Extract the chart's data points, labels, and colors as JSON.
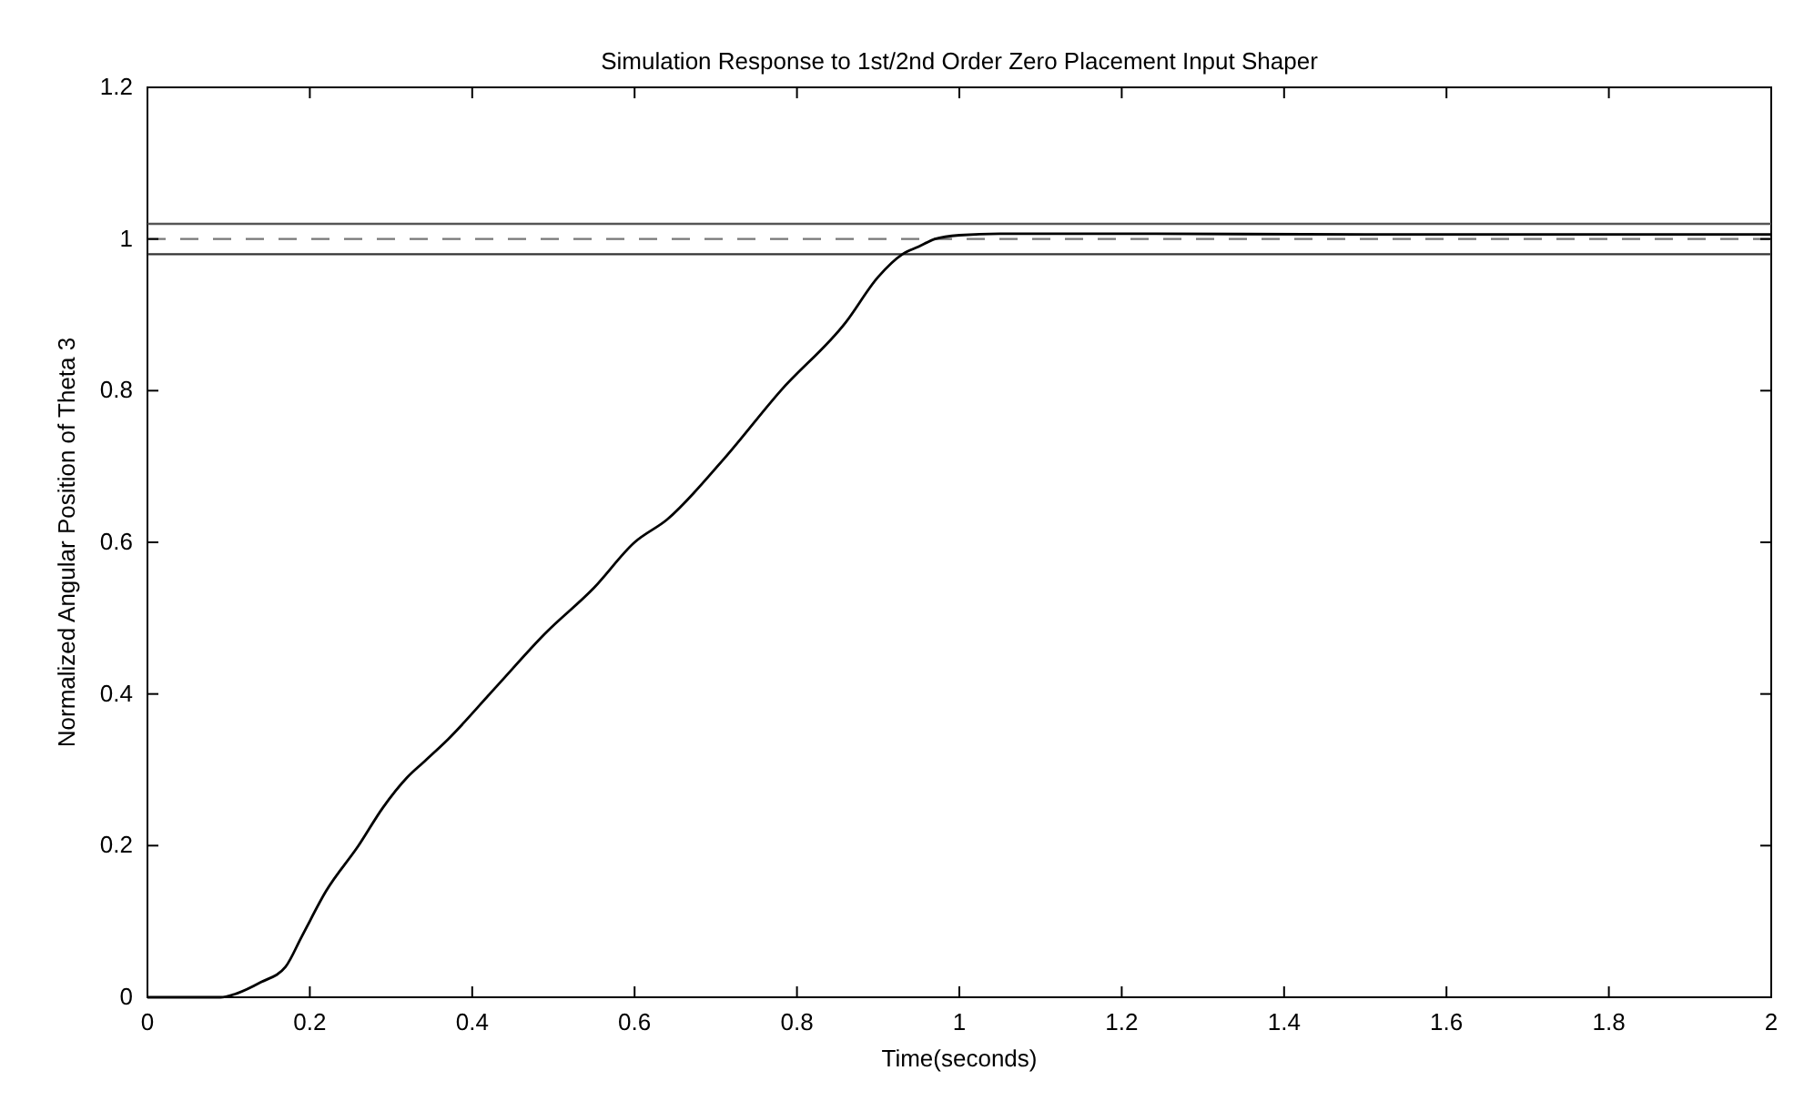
{
  "chart_data": {
    "type": "line",
    "title": "Simulation Response to 1st/2nd Order Zero Placement Input Shaper",
    "xlabel": "Time(seconds)",
    "ylabel": "Normalized Angular Position of Theta 3",
    "series": [
      {
        "color": "#000000",
        "x": [
          0,
          0.09,
          0.11,
          0.14,
          0.17,
          0.19,
          0.22,
          0.26,
          0.29,
          0.32,
          0.34,
          0.37,
          0.43,
          0.49,
          0.55,
          0.6,
          0.64,
          0.71,
          0.78,
          0.86,
          0.9,
          0.93,
          0.95,
          0.97,
          1.0,
          1.05,
          1.2,
          1.5,
          2.0
        ],
        "values": [
          0,
          0,
          0.005,
          0.02,
          0.04,
          0.08,
          0.14,
          0.2,
          0.25,
          0.29,
          0.31,
          0.34,
          0.41,
          0.48,
          0.54,
          0.6,
          0.63,
          0.71,
          0.8,
          0.89,
          0.95,
          0.98,
          0.99,
          1.0,
          1.005,
          1.007,
          1.007,
          1.006,
          1.006
        ]
      }
    ],
    "xlim": [
      0,
      2
    ],
    "xticks": [
      0,
      {
        "value": 0.2,
        "label": "0.2"
      },
      {
        "value": 0.4,
        "label": "0.4"
      },
      {
        "value": 0.6,
        "label": "0.6"
      },
      {
        "value": 0.8,
        "label": "0.8"
      },
      1,
      {
        "value": 1.2,
        "label": "1.2"
      },
      {
        "value": 1.4,
        "label": "1.4"
      },
      {
        "value": 1.6,
        "label": "1.6"
      },
      {
        "value": 1.8,
        "label": "1.8"
      },
      2
    ],
    "ylim": [
      0,
      1.2
    ],
    "yticks": [
      0,
      {
        "value": 0.2,
        "label": "0.2"
      },
      {
        "value": 0.4,
        "label": "0.4"
      },
      {
        "value": 0.6,
        "label": "0.6"
      },
      {
        "value": 0.8,
        "label": "0.8"
      },
      1,
      {
        "value": 1.2,
        "label": "1.2"
      }
    ],
    "ref_lines": [
      {
        "axis": "y",
        "value": 1.02,
        "color": "#555555",
        "line_style": "solid"
      },
      {
        "axis": "y",
        "value": 1,
        "color": "#777777",
        "line_style": "dashed"
      },
      {
        "axis": "y",
        "value": 0.98,
        "color": "#333333",
        "line_style": "solid"
      }
    ],
    "line_style": "solid"
  }
}
